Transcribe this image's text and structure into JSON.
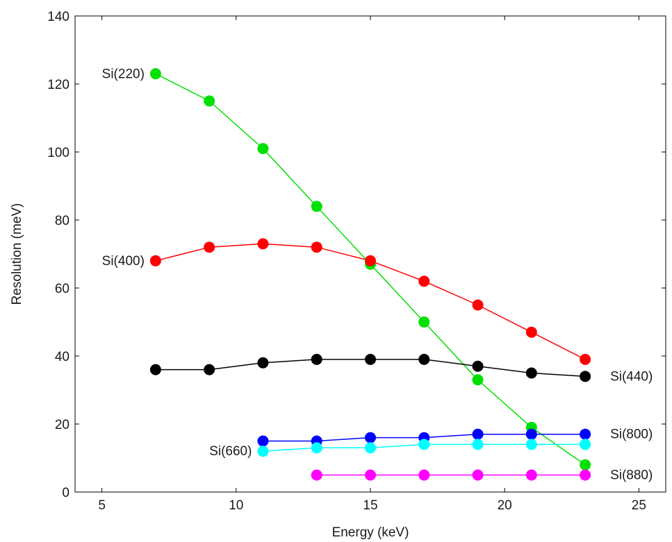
{
  "chart_data": {
    "type": "line",
    "xlabel": "Energy (keV)",
    "ylabel": "Resolution (meV)",
    "xlim": [
      4,
      26
    ],
    "ylim": [
      0,
      140
    ],
    "xticks": [
      5,
      10,
      15,
      20,
      25
    ],
    "yticks": [
      0,
      20,
      40,
      60,
      80,
      100,
      120,
      140
    ],
    "grid": false,
    "series": [
      {
        "name": "Si(220)",
        "color": "#00e000",
        "x": [
          7,
          9,
          11,
          13,
          15,
          17,
          19,
          21,
          23
        ],
        "values": [
          123,
          115,
          101,
          84,
          67,
          50,
          33,
          19,
          8
        ]
      },
      {
        "name": "Si(400)",
        "color": "#ff0000",
        "x": [
          7,
          9,
          11,
          13,
          15,
          17,
          19,
          21,
          23
        ],
        "values": [
          68,
          72,
          73,
          72,
          68,
          62,
          55,
          47,
          39
        ]
      },
      {
        "name": "Si(440)",
        "color": "#000000",
        "x": [
          7,
          9,
          11,
          13,
          15,
          17,
          19,
          21,
          23
        ],
        "values": [
          36,
          36,
          38,
          39,
          39,
          39,
          37,
          35,
          34
        ]
      },
      {
        "name": "Si(800)",
        "color": "#0000ff",
        "x": [
          11,
          13,
          15,
          17,
          19,
          21,
          23
        ],
        "values": [
          15,
          15,
          16,
          16,
          17,
          17,
          17
        ]
      },
      {
        "name": "Si(660)",
        "color": "#00ffff",
        "x": [
          11,
          13,
          15,
          17,
          19,
          21,
          23
        ],
        "values": [
          12,
          13,
          13,
          14,
          14,
          14,
          14
        ]
      },
      {
        "name": "Si(880)",
        "color": "#ff00ff",
        "x": [
          13,
          15,
          17,
          19,
          21,
          23
        ],
        "values": [
          5,
          5,
          5,
          5,
          5,
          5
        ]
      }
    ]
  }
}
